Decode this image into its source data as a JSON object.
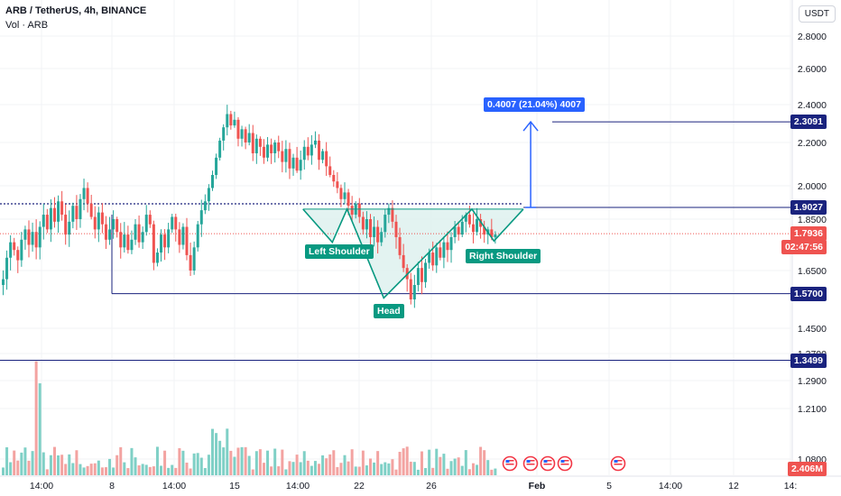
{
  "header": {
    "title": "ARB / TetherUS, 4h, BINANCE",
    "volume_label": "Vol · ARB",
    "currency": "USDT"
  },
  "colors": {
    "up": "#26a69a",
    "down": "#ef5350",
    "up_vol": "#7fd0c6",
    "down_vol": "#f3a3a1",
    "level": "#1a237e",
    "pattern": "#089981",
    "pattern_fill": "#e0f2ef",
    "projection": "#2962ff"
  },
  "chart_data": {
    "type": "candlestick",
    "title": "ARB / TetherUS, 4h, BINANCE",
    "y_ticks": [
      "2.8000",
      "2.6000",
      "2.4000",
      "2.2000",
      "2.0000",
      "1.8500",
      "1.6500",
      "1.4500",
      "1.3700",
      "1.2900",
      "1.2100",
      "1.0800"
    ],
    "x_ticks": [
      "14:00",
      "8",
      "14:00",
      "15",
      "14:00",
      "22",
      "26",
      "Feb",
      "5",
      "14:00",
      "12",
      "14:"
    ],
    "levels": [
      {
        "price": "2.3091",
        "kind": "target"
      },
      {
        "price": "1.9027",
        "kind": "neckline"
      },
      {
        "price": "1.5700",
        "kind": "support"
      },
      {
        "price": "1.3499",
        "kind": "support"
      }
    ],
    "current_price": {
      "price": "1.7936",
      "countdown": "02:47:56"
    },
    "volume_value": "2.406M",
    "measure_label": "0.4007 (21.04%) 4007",
    "pattern_labels": [
      "Left Shoulder",
      "Head",
      "Right Shoulder"
    ],
    "prices": [
      1.62,
      1.7,
      1.76,
      1.73,
      1.69,
      1.77,
      1.81,
      1.75,
      1.8,
      1.74,
      1.82,
      1.87,
      1.81,
      1.9,
      1.84,
      1.93,
      1.87,
      1.79,
      1.84,
      1.91,
      1.85,
      1.94,
      1.99,
      1.92,
      1.86,
      1.81,
      1.88,
      1.83,
      1.77,
      1.81,
      1.85,
      1.8,
      1.74,
      1.79,
      1.73,
      1.77,
      1.83,
      1.76,
      1.8,
      1.87,
      1.83,
      1.68,
      1.72,
      1.79,
      1.74,
      1.81,
      1.86,
      1.81,
      1.75,
      1.82,
      1.71,
      1.65,
      1.74,
      1.83,
      1.89,
      1.93,
      1.99,
      2.05,
      2.13,
      2.21,
      2.28,
      2.35,
      2.29,
      2.32,
      2.22,
      2.27,
      2.2,
      2.25,
      2.15,
      2.22,
      2.18,
      2.13,
      2.19,
      2.15,
      2.2,
      2.16,
      2.11,
      2.17,
      2.08,
      2.13,
      2.07,
      2.12,
      2.18,
      2.14,
      2.19,
      2.21,
      2.12,
      2.16,
      2.09,
      2.05,
      2.02,
      1.99,
      1.94,
      1.97,
      1.91,
      1.87,
      1.92,
      1.86,
      1.81,
      1.85,
      1.78,
      1.82,
      1.76,
      1.8,
      1.87,
      1.9,
      1.84,
      1.78,
      1.71,
      1.66,
      1.62,
      1.55,
      1.6,
      1.66,
      1.61,
      1.68,
      1.72,
      1.67,
      1.74,
      1.7,
      1.76,
      1.73,
      1.78,
      1.82,
      1.79,
      1.84,
      1.87,
      1.83,
      1.8,
      1.85,
      1.82,
      1.79,
      1.81,
      1.78,
      1.79
    ]
  }
}
